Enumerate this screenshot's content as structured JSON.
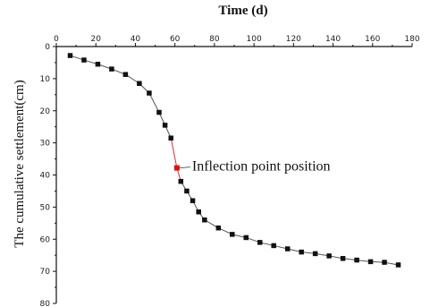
{
  "chart_data": {
    "type": "scatter",
    "title": "",
    "xlabel": "Time (d)",
    "ylabel": "The cumulative settlement(cm)",
    "xlim": [
      0,
      180
    ],
    "ylim": [
      0,
      80
    ],
    "y_inverted": true,
    "x_axis_position": "top",
    "x_ticks": [
      0,
      20,
      40,
      60,
      80,
      100,
      120,
      140,
      160,
      180
    ],
    "y_ticks": [
      0,
      10,
      20,
      30,
      40,
      50,
      60,
      70,
      80
    ],
    "grid": false,
    "legend": "none",
    "series": [
      {
        "marker": "square",
        "color": "#111111",
        "connect_line_color": "#555555",
        "x": [
          7,
          14,
          21,
          28,
          35,
          42,
          47,
          52,
          55,
          58,
          61,
          63,
          66,
          69,
          72,
          75,
          82,
          89,
          96,
          103,
          110,
          117,
          124,
          131,
          138,
          145,
          152,
          159,
          166,
          173
        ],
        "y": [
          2.8,
          4.2,
          5.5,
          7.0,
          8.7,
          11.5,
          14.5,
          20.5,
          24.5,
          28.5,
          37.8,
          42.0,
          45.0,
          48.0,
          51.5,
          54.0,
          56.5,
          58.5,
          59.5,
          61.0,
          62.0,
          63.0,
          64.0,
          64.5,
          65.2,
          66.0,
          66.5,
          67.0,
          67.2,
          68.0
        ]
      }
    ],
    "highlight": {
      "x": 61,
      "y": 37.8,
      "color": "#e01010",
      "segment_color": "#e03030",
      "label": "Inflection point position"
    }
  }
}
